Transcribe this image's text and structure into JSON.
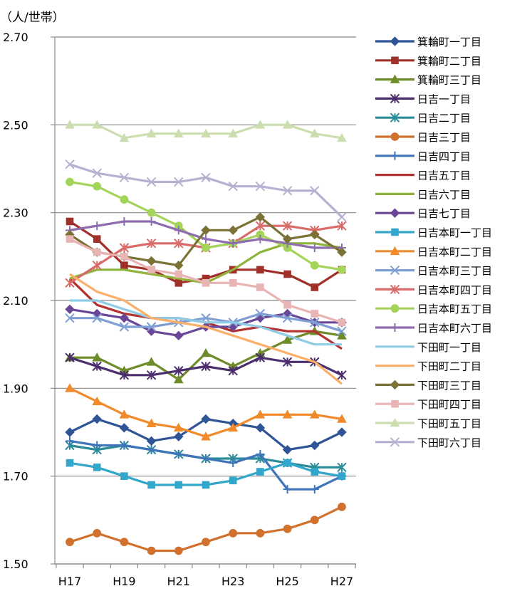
{
  "chart_data": {
    "type": "line",
    "unit_label": "（人/世帯）",
    "x": [
      "H17",
      "H18",
      "H19",
      "H20",
      "H21",
      "H22",
      "H23",
      "H24",
      "H25",
      "H26",
      "H27"
    ],
    "x_tick_labels": [
      "H17",
      "H19",
      "H21",
      "H23",
      "H25",
      "H27"
    ],
    "ylim": [
      1.5,
      2.7
    ],
    "y_ticks": [
      "1.50",
      "1.70",
      "1.90",
      "2.10",
      "2.30",
      "2.50",
      "2.70"
    ],
    "grid": "horizontal",
    "legend_position": "right",
    "series": [
      {
        "name": "箕輪町一丁目",
        "color": "#2F5597",
        "marker": "diamond",
        "values": [
          1.8,
          1.83,
          1.81,
          1.78,
          1.79,
          1.83,
          1.82,
          1.81,
          1.76,
          1.77,
          1.8
        ]
      },
      {
        "name": "箕輪町二丁目",
        "color": "#A0302A",
        "marker": "square",
        "values": [
          2.28,
          2.24,
          2.18,
          2.17,
          2.14,
          2.15,
          2.17,
          2.17,
          2.16,
          2.13,
          2.17
        ]
      },
      {
        "name": "箕輪町三丁目",
        "color": "#6E8C2A",
        "marker": "triangle",
        "values": [
          1.97,
          1.97,
          1.94,
          1.96,
          1.92,
          1.98,
          1.95,
          1.98,
          2.01,
          2.03,
          2.02
        ]
      },
      {
        "name": "日吉一丁目",
        "color": "#4B2E6E",
        "marker": "star",
        "values": [
          1.97,
          1.95,
          1.93,
          1.93,
          1.94,
          1.95,
          1.94,
          1.97,
          1.96,
          1.96,
          1.93
        ]
      },
      {
        "name": "日吉二丁目",
        "color": "#2B8C99",
        "marker": "star",
        "values": [
          1.77,
          1.76,
          1.77,
          1.76,
          1.75,
          1.74,
          1.74,
          1.74,
          1.73,
          1.72,
          1.72
        ]
      },
      {
        "name": "日吉三丁目",
        "color": "#D2712E",
        "marker": "circle",
        "values": [
          1.55,
          1.57,
          1.55,
          1.53,
          1.53,
          1.55,
          1.57,
          1.57,
          1.58,
          1.6,
          1.63
        ]
      },
      {
        "name": "日吉四丁目",
        "color": "#3F74B8",
        "marker": "plus",
        "values": [
          1.78,
          1.77,
          1.77,
          1.76,
          1.75,
          1.74,
          1.73,
          1.75,
          1.67,
          1.67,
          1.7
        ]
      },
      {
        "name": "日吉五丁目",
        "color": "#B3312E",
        "marker": "none",
        "values": [
          2.15,
          2.09,
          2.07,
          2.06,
          2.06,
          2.05,
          2.03,
          2.04,
          2.03,
          2.03,
          1.99
        ]
      },
      {
        "name": "日吉六丁目",
        "color": "#8DB33A",
        "marker": "none",
        "values": [
          2.15,
          2.17,
          2.17,
          2.16,
          2.15,
          2.14,
          2.17,
          2.21,
          2.23,
          2.23,
          2.22
        ]
      },
      {
        "name": "日吉七丁目",
        "color": "#6A4696",
        "marker": "diamond",
        "values": [
          2.08,
          2.07,
          2.06,
          2.03,
          2.02,
          2.04,
          2.04,
          2.06,
          2.07,
          2.05,
          2.05
        ]
      },
      {
        "name": "日吉本町一丁目",
        "color": "#33A6CC",
        "marker": "square",
        "values": [
          1.73,
          1.72,
          1.7,
          1.68,
          1.68,
          1.68,
          1.69,
          1.71,
          1.73,
          1.71,
          1.7
        ]
      },
      {
        "name": "日吉本町二丁目",
        "color": "#F08A2B",
        "marker": "triangle",
        "values": [
          1.9,
          1.87,
          1.84,
          1.82,
          1.81,
          1.79,
          1.81,
          1.84,
          1.84,
          1.84,
          1.83
        ]
      },
      {
        "name": "日吉本町三丁目",
        "color": "#7F9FD4",
        "marker": "x",
        "values": [
          2.06,
          2.06,
          2.04,
          2.04,
          2.05,
          2.06,
          2.05,
          2.07,
          2.06,
          2.05,
          2.03
        ]
      },
      {
        "name": "日吉本町四丁目",
        "color": "#D96A6A",
        "marker": "star",
        "values": [
          2.14,
          2.18,
          2.22,
          2.23,
          2.23,
          2.22,
          2.23,
          2.27,
          2.27,
          2.26,
          2.27
        ]
      },
      {
        "name": "日吉本町五丁目",
        "color": "#A4D45A",
        "marker": "circle",
        "values": [
          2.37,
          2.36,
          2.33,
          2.3,
          2.27,
          2.22,
          2.23,
          2.25,
          2.22,
          2.18,
          2.17
        ]
      },
      {
        "name": "日吉本町六丁目",
        "color": "#8D6DB0",
        "marker": "plus",
        "values": [
          2.26,
          2.27,
          2.28,
          2.28,
          2.26,
          2.24,
          2.23,
          2.24,
          2.23,
          2.22,
          2.22
        ]
      },
      {
        "name": "下田町一丁目",
        "color": "#8FCDE6",
        "marker": "none",
        "values": [
          2.1,
          2.1,
          2.08,
          2.06,
          2.06,
          2.05,
          2.05,
          2.04,
          2.02,
          2.0,
          2.0
        ]
      },
      {
        "name": "下田町二丁目",
        "color": "#FBB06A",
        "marker": "none",
        "values": [
          2.16,
          2.12,
          2.1,
          2.06,
          2.05,
          2.04,
          2.02,
          2.0,
          1.98,
          1.96,
          1.91
        ]
      },
      {
        "name": "下田町三丁目",
        "color": "#7B7336",
        "marker": "diamond",
        "values": [
          2.25,
          2.21,
          2.2,
          2.19,
          2.18,
          2.26,
          2.26,
          2.29,
          2.24,
          2.25,
          2.21
        ]
      },
      {
        "name": "下田町四丁目",
        "color": "#E8B4B4",
        "marker": "square",
        "values": [
          2.24,
          2.21,
          2.2,
          2.17,
          2.16,
          2.14,
          2.14,
          2.13,
          2.09,
          2.07,
          2.05
        ]
      },
      {
        "name": "下田町五丁目",
        "color": "#CCDEB0",
        "marker": "triangle",
        "values": [
          2.5,
          2.5,
          2.47,
          2.48,
          2.48,
          2.48,
          2.48,
          2.5,
          2.5,
          2.48,
          2.47
        ]
      },
      {
        "name": "下田町六丁目",
        "color": "#B7B1D1",
        "marker": "x",
        "values": [
          2.41,
          2.39,
          2.38,
          2.37,
          2.37,
          2.38,
          2.36,
          2.36,
          2.35,
          2.35,
          2.29
        ]
      }
    ]
  }
}
